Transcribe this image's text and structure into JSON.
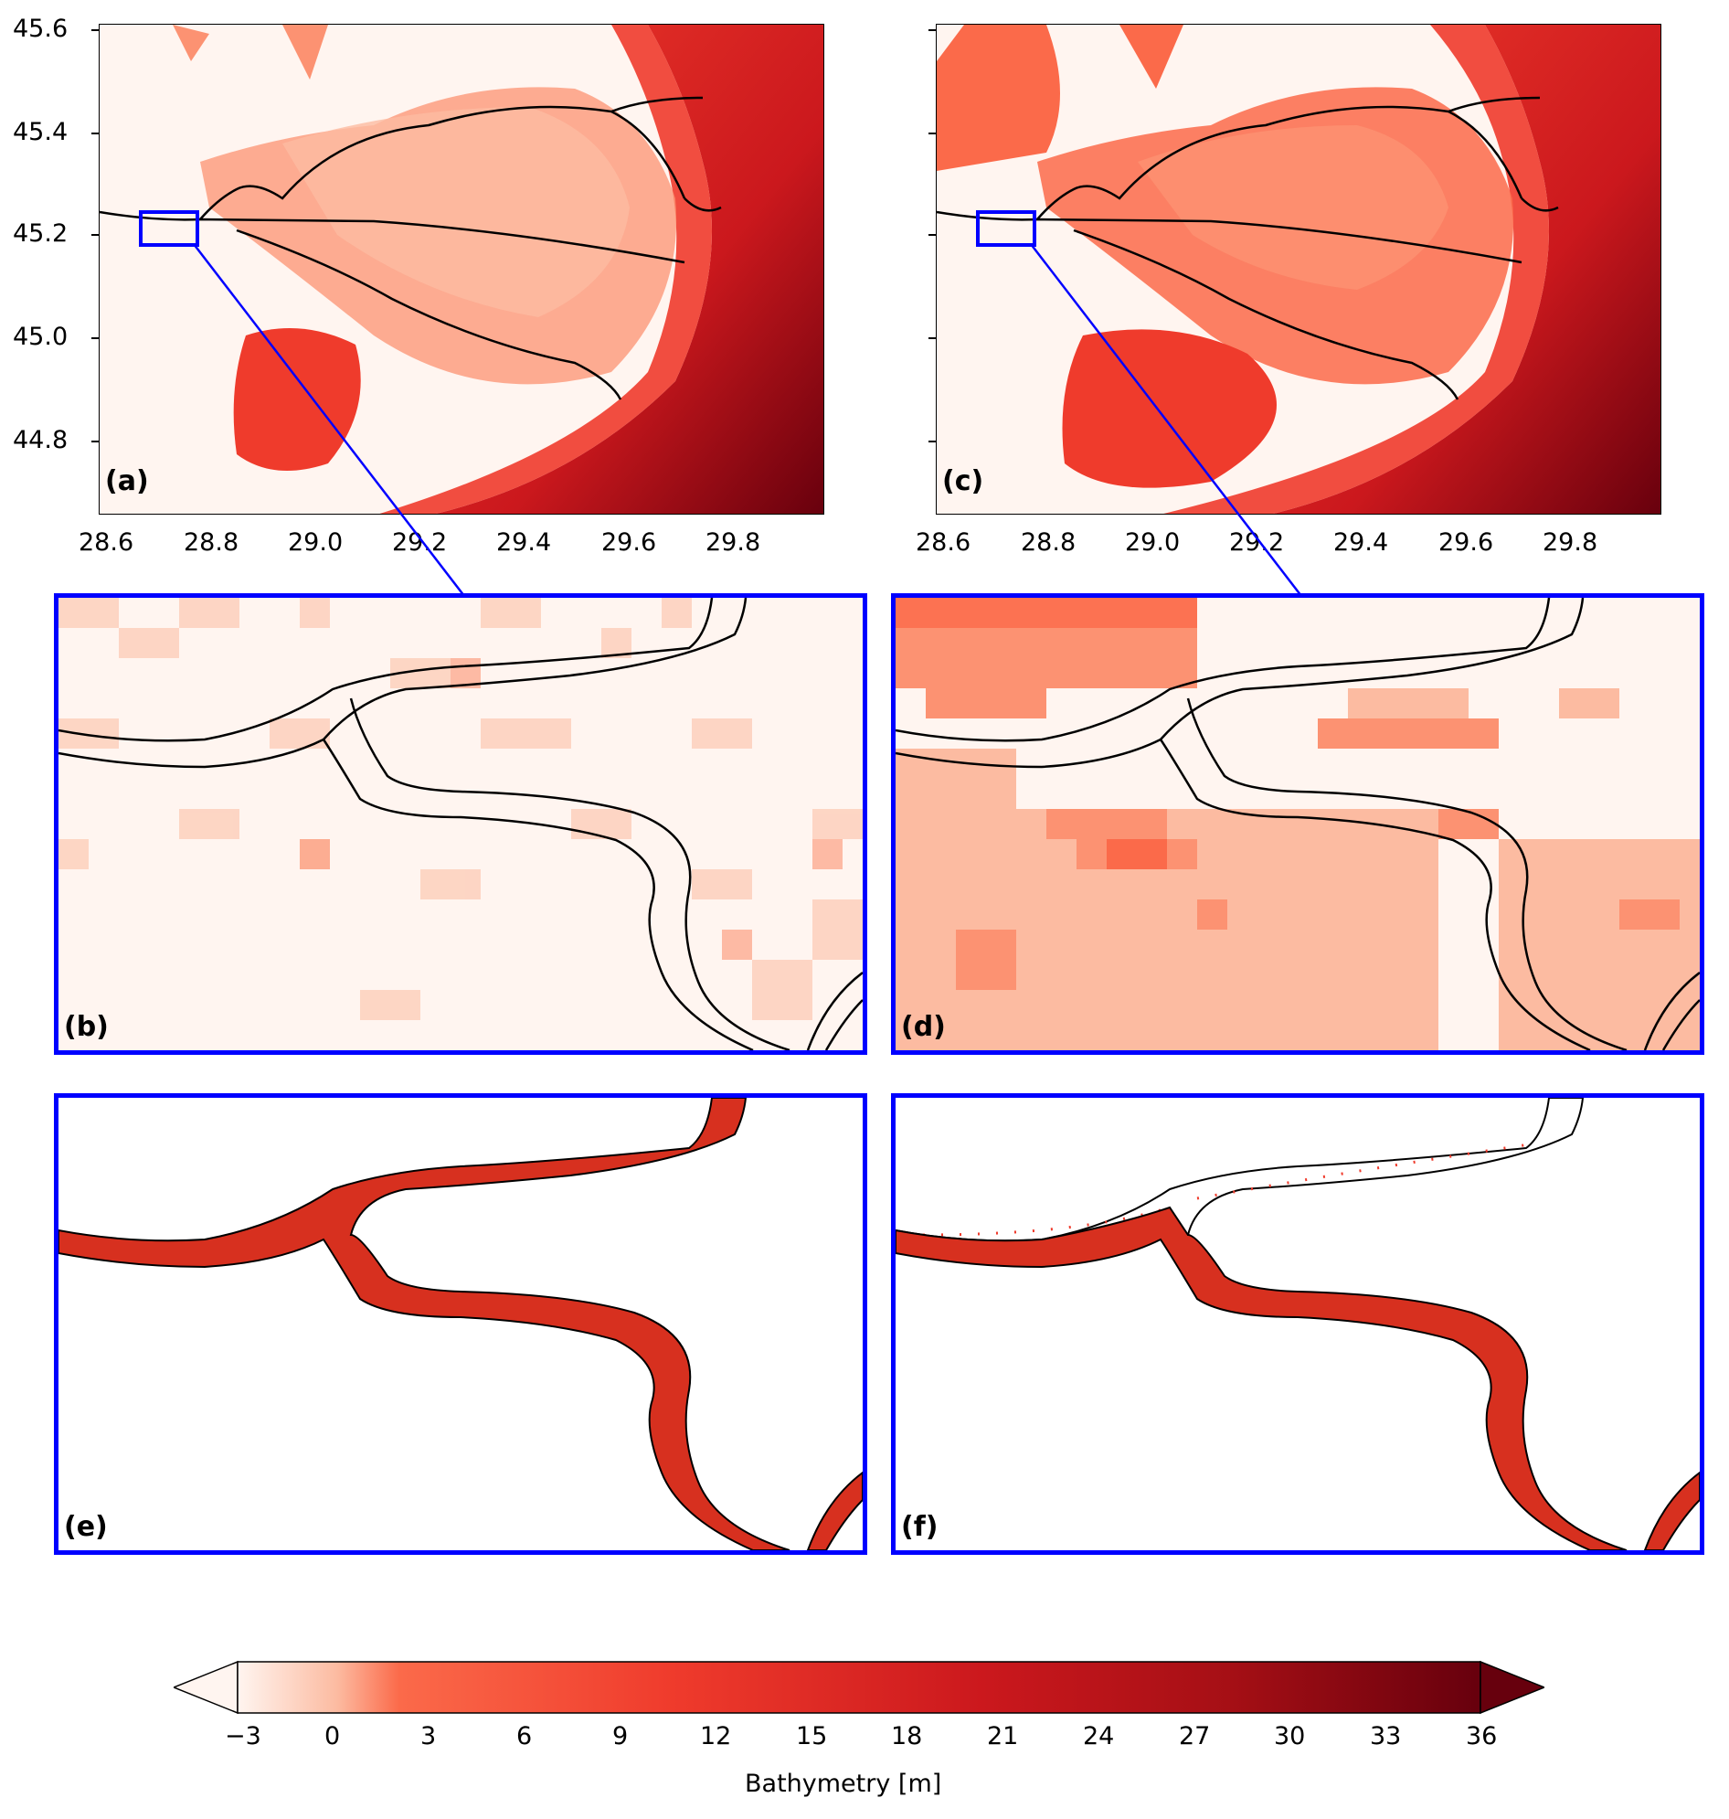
{
  "panels": {
    "a": {
      "label": "(a)"
    },
    "b": {
      "label": "(b)"
    },
    "c": {
      "label": "(c)"
    },
    "d": {
      "label": "(d)"
    },
    "e": {
      "label": "(e)"
    },
    "f": {
      "label": "(f)"
    }
  },
  "axes": {
    "x_ticks": [
      "28.6",
      "28.8",
      "29.0",
      "29.2",
      "29.4",
      "29.6",
      "29.8"
    ],
    "y_ticks": [
      "45.6",
      "45.4",
      "45.2",
      "45.0",
      "44.8"
    ],
    "x_range": [
      28.57,
      29.96
    ],
    "y_range": [
      44.66,
      45.61
    ]
  },
  "colorbar": {
    "label": "Bathymetry [m]",
    "ticks": [
      "−3",
      "0",
      "3",
      "6",
      "9",
      "12",
      "15",
      "18",
      "21",
      "24",
      "27",
      "30",
      "33",
      "36"
    ],
    "range": [
      -3,
      36
    ],
    "extend": "both",
    "colormap": [
      "#fff5f0",
      "#fcbba1",
      "#fb6a4a",
      "#ef3b2c",
      "#cb181d",
      "#a50f15",
      "#67000d"
    ]
  },
  "highlight_color": "#0000ff"
}
